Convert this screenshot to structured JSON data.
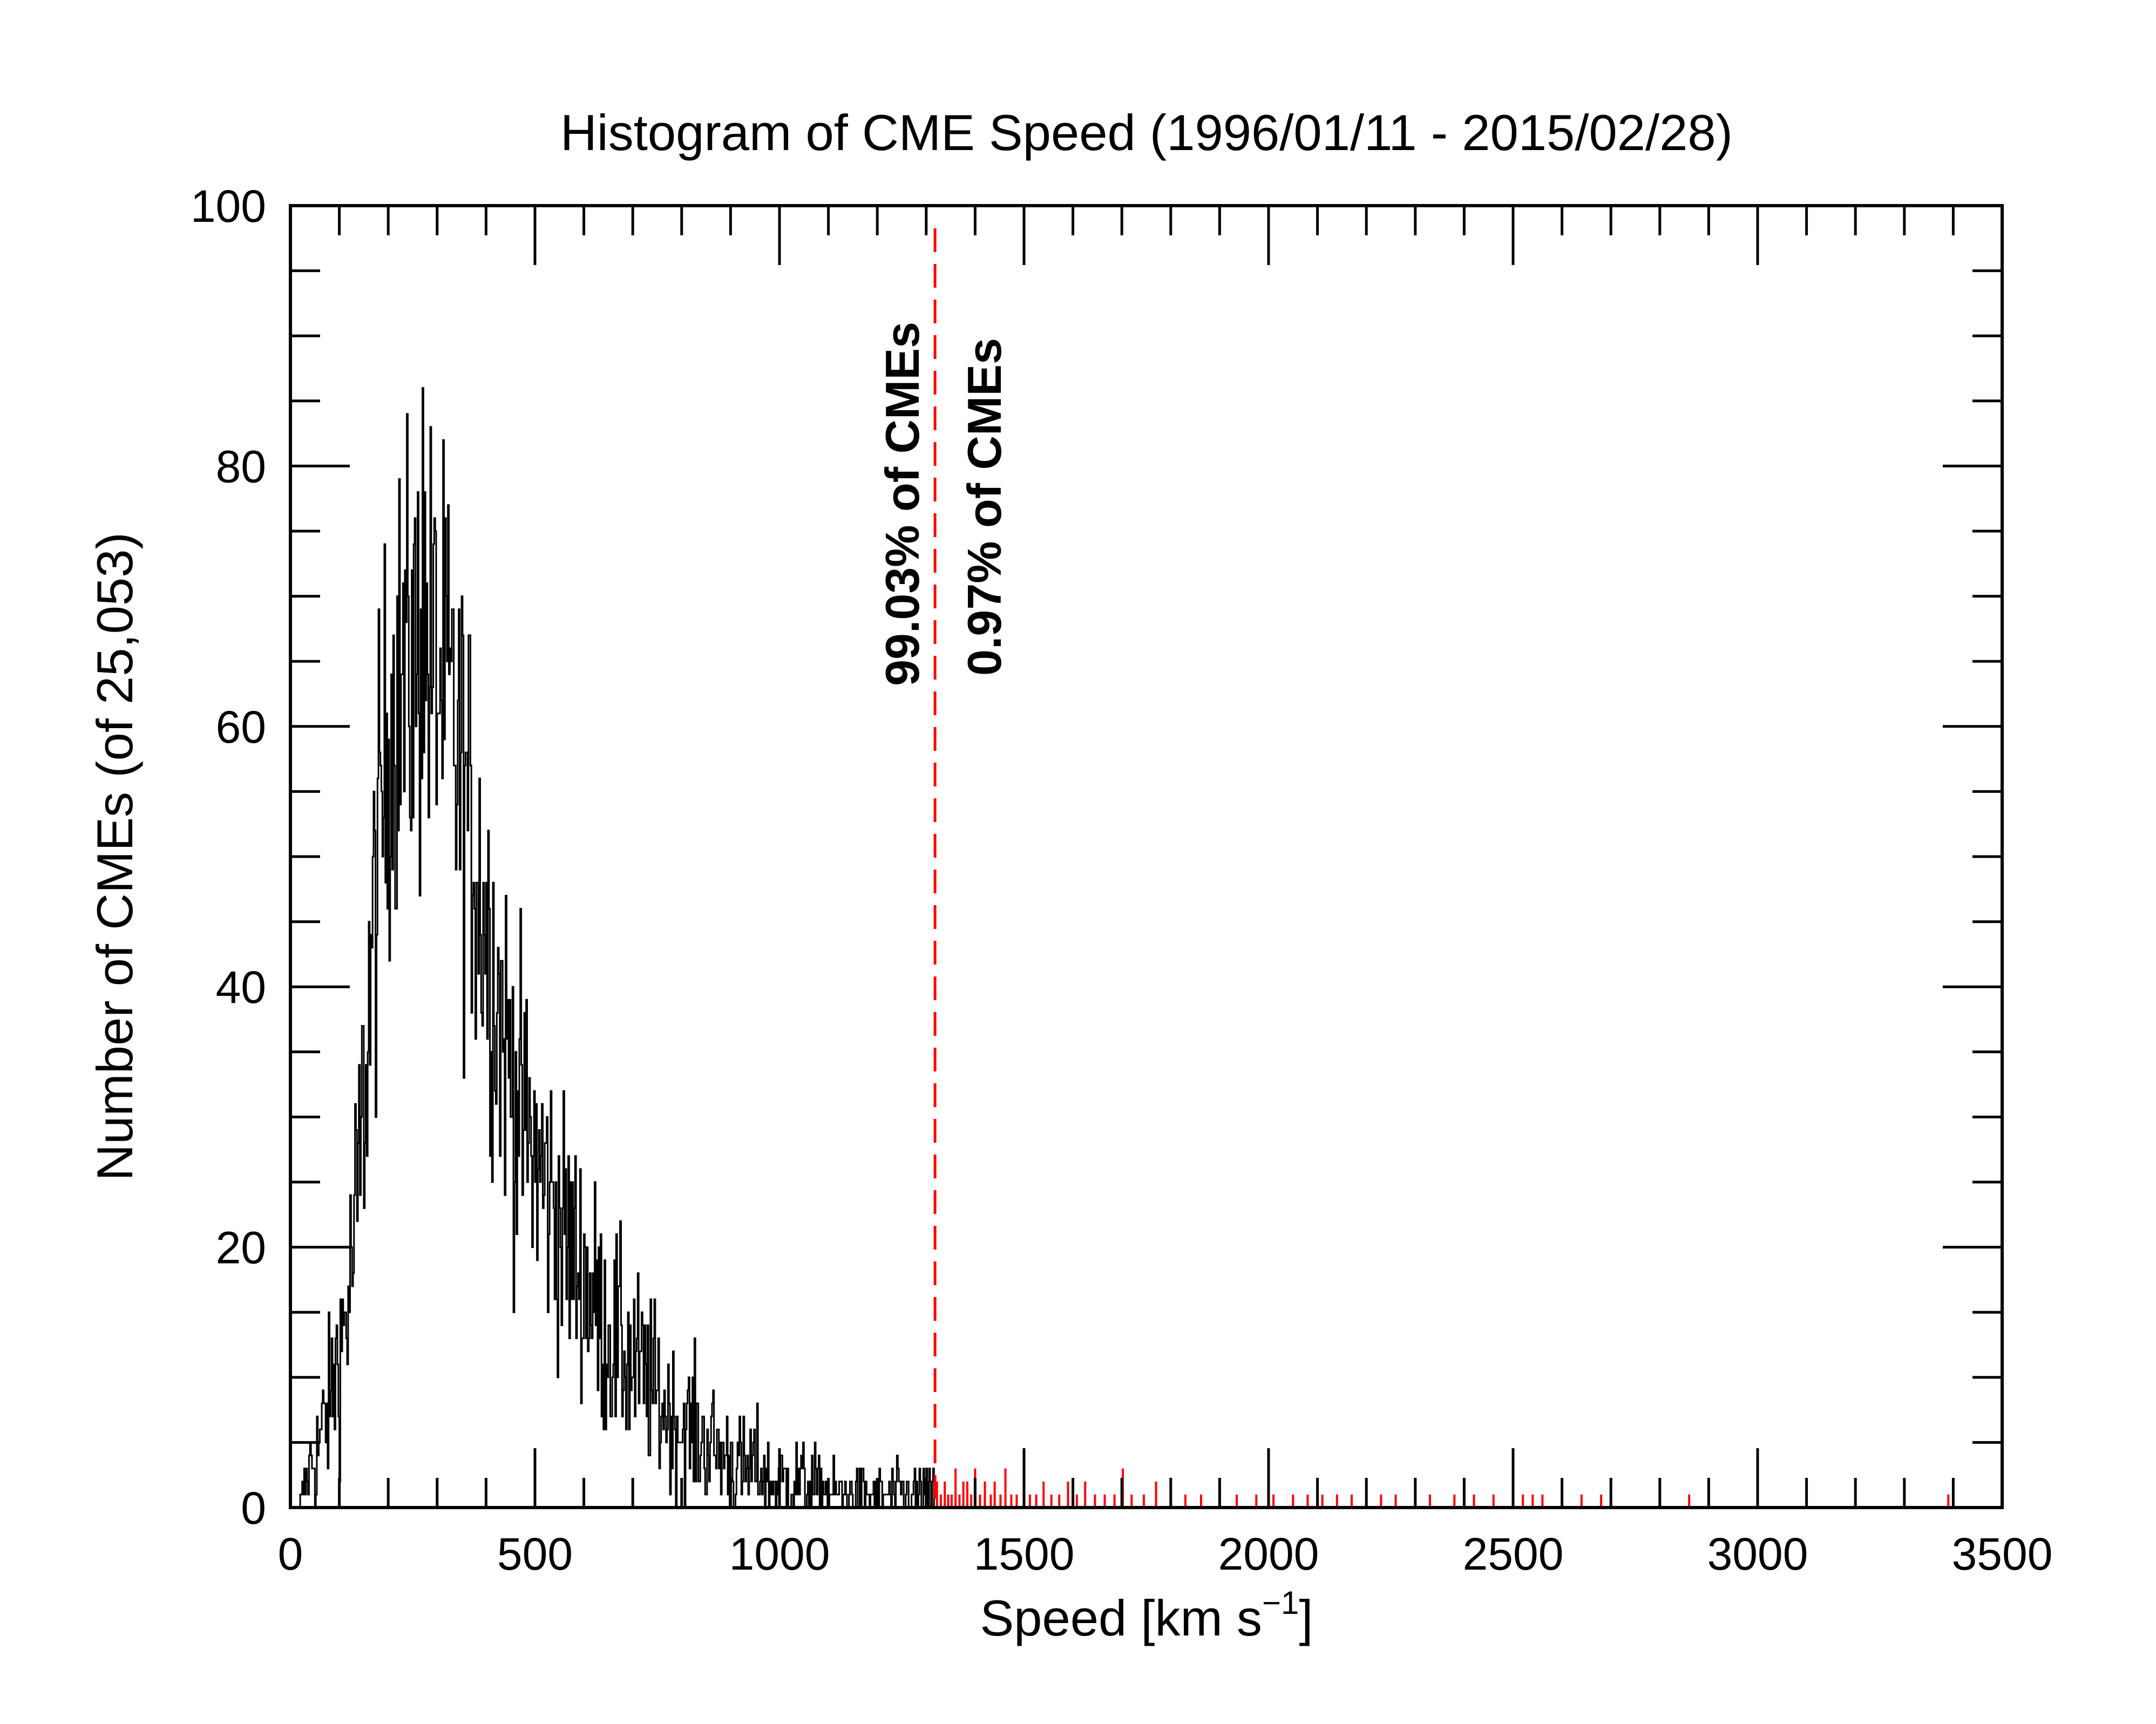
{
  "chart_data": {
    "type": "histogram",
    "title": "Histogram of CME Speed (1996/01/11 - 2015/02/28)",
    "xlabel_main": "Speed [km s",
    "xlabel_sup": "−1",
    "xlabel_close": "]",
    "ylabel": "Number of CMEs (of 25,053)",
    "xlim": [
      0,
      3500
    ],
    "ylim": [
      0,
      100
    ],
    "xticks": [
      0,
      500,
      1000,
      1500,
      2000,
      2500,
      3000,
      3500
    ],
    "yticks": [
      0,
      20,
      40,
      60,
      80,
      100
    ],
    "bin_width_km_s": 2,
    "grid": false,
    "threshold": {
      "speed": 1318,
      "color": "#ff0000",
      "label_below": "99.03% of CMEs",
      "label_above": "0.97% of CMEs"
    },
    "series": [
      {
        "color": "#000000",
        "envelope": {
          "x": [
            20,
            40,
            60,
            80,
            100,
            120,
            140,
            160,
            180,
            200,
            220,
            240,
            260,
            280,
            300,
            320,
            340,
            360,
            380,
            400,
            420,
            440,
            460,
            480,
            500,
            520,
            540,
            560,
            580,
            600,
            620,
            640,
            660,
            680,
            700,
            720,
            740,
            760,
            780,
            800,
            820,
            840,
            860,
            880,
            900,
            920,
            940,
            960,
            980,
            1000,
            1050,
            1100,
            1150,
            1200,
            1250,
            1318
          ],
          "y": [
            0,
            3,
            5,
            8,
            12,
            16,
            25,
            38,
            50,
            60,
            63,
            64,
            65,
            66,
            64,
            62,
            58,
            54,
            50,
            45,
            40,
            36,
            32,
            29,
            27,
            25,
            23,
            21,
            19,
            18,
            16,
            14,
            13,
            12,
            11,
            10,
            9,
            8,
            7,
            6,
            6,
            5,
            5,
            4,
            4,
            3,
            3,
            3,
            2,
            2,
            2,
            1,
            1,
            1,
            1,
            1
          ]
        },
        "peak": {
          "x": 270,
          "y": 86
        }
      },
      {
        "color": "#ff0000",
        "x": [
          1322,
          1330,
          1338,
          1345,
          1352,
          1360,
          1368,
          1376,
          1384,
          1392,
          1400,
          1410,
          1420,
          1432,
          1440,
          1452,
          1462,
          1474,
          1485,
          1500,
          1512,
          1525,
          1540,
          1556,
          1572,
          1590,
          1608,
          1625,
          1645,
          1665,
          1685,
          1702,
          1720,
          1745,
          1770,
          1800,
          1830,
          1862,
          1900,
          1935,
          1975,
          2010,
          2050,
          2080,
          2110,
          2140,
          2170,
          2200,
          2230,
          2260,
          2300,
          2330,
          2380,
          2400,
          2420,
          2460,
          2500,
          2520,
          2540,
          2560,
          2600,
          2640,
          2680,
          2700,
          2860,
          3390
        ],
        "values": [
          2,
          1,
          2,
          1,
          1,
          3,
          1,
          2,
          2,
          1,
          3,
          1,
          2,
          1,
          2,
          1,
          3,
          1,
          1,
          2,
          1,
          1,
          2,
          1,
          1,
          2,
          1,
          2,
          1,
          1,
          1,
          3,
          1,
          1,
          2,
          1,
          1,
          1,
          1,
          1,
          1,
          1,
          1,
          1,
          1,
          1,
          1,
          1,
          1,
          1,
          1,
          1,
          1,
          1,
          1,
          1,
          1,
          1,
          1,
          1,
          1,
          1,
          1,
          1,
          1,
          1
        ]
      }
    ]
  }
}
